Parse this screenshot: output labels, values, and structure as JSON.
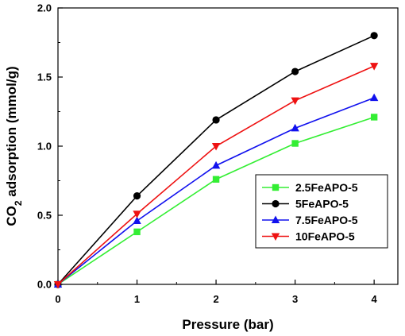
{
  "chart_data": {
    "type": "line",
    "x": [
      0,
      1,
      2,
      3,
      4
    ],
    "xlim": [
      0,
      4.3
    ],
    "ylim": [
      0,
      2.0
    ],
    "xticks": [
      "0",
      "1",
      "2",
      "3",
      "4"
    ],
    "yticks": [
      "0.0",
      "0.5",
      "1.0",
      "1.5",
      "2.0"
    ],
    "xlabel": "Pressure (bar)",
    "ylabel": {
      "pre": "CO",
      "sub": "2",
      "post": " adsorption (mmol/g)"
    },
    "grid": false,
    "legend_position": "lower-right",
    "series": [
      {
        "name": "2.5FeAPO-5",
        "color": "#33ee33",
        "marker": "square",
        "values": [
          0.0,
          0.38,
          0.76,
          1.02,
          1.21
        ]
      },
      {
        "name": "5FeAPO-5",
        "color": "#000000",
        "marker": "circle",
        "values": [
          0.0,
          0.64,
          1.19,
          1.54,
          1.8
        ]
      },
      {
        "name": "7.5FeAPO-5",
        "color": "#1111ee",
        "marker": "triangle-up",
        "values": [
          0.0,
          0.46,
          0.86,
          1.13,
          1.35
        ]
      },
      {
        "name": "10FeAPO-5",
        "color": "#ee1111",
        "marker": "triangle-down",
        "values": [
          0.0,
          0.51,
          1.0,
          1.33,
          1.58
        ]
      }
    ]
  }
}
